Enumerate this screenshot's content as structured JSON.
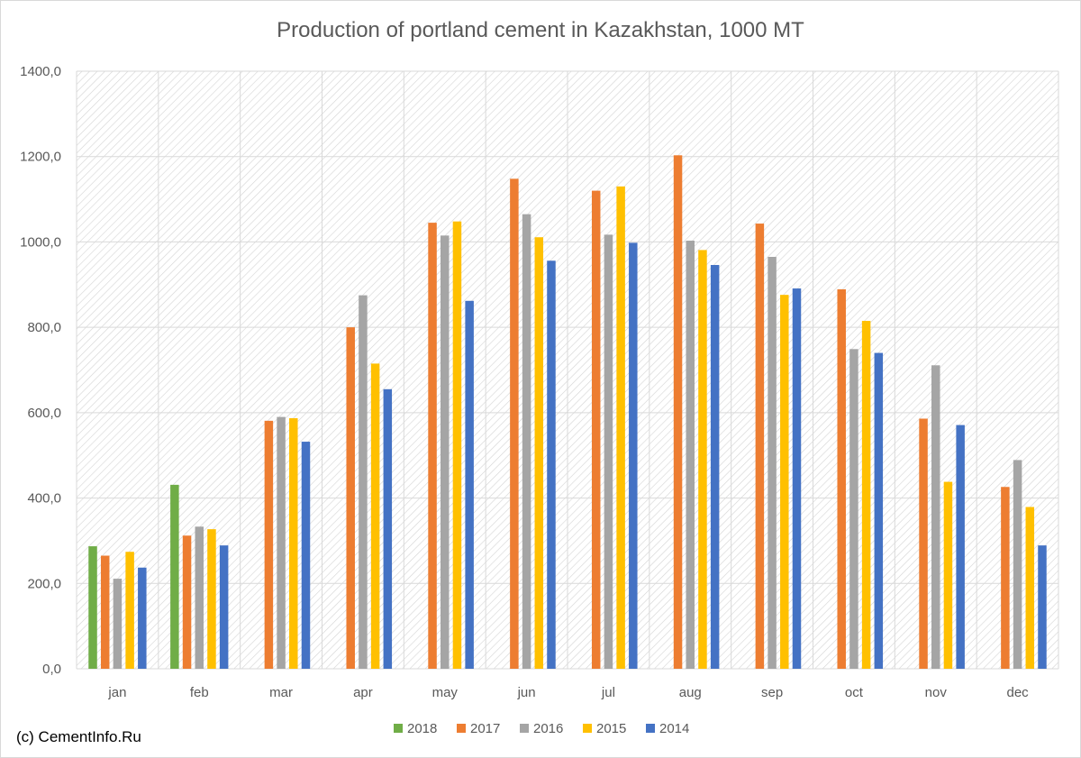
{
  "chart_data": {
    "type": "bar",
    "title": "Production of portland cement in Kazakhstan, 1000 MT",
    "categories": [
      "jan",
      "feb",
      "mar",
      "apr",
      "may",
      "jun",
      "jul",
      "aug",
      "sep",
      "oct",
      "nov",
      "dec"
    ],
    "ylim": [
      0,
      1400
    ],
    "yticks": [
      0,
      200,
      400,
      600,
      800,
      1000,
      1200,
      1400
    ],
    "ytick_labels": [
      "0,0",
      "200,0",
      "400,0",
      "600,0",
      "800,0",
      "1000,0",
      "1200,0",
      "1400,0"
    ],
    "grid": true,
    "legend_position": "bottom",
    "series": [
      {
        "name": "2018",
        "color": "#70ad47",
        "values": [
          287,
          431,
          null,
          null,
          null,
          null,
          null,
          null,
          null,
          null,
          null,
          null
        ]
      },
      {
        "name": "2017",
        "color": "#ed7d31",
        "values": [
          265,
          312,
          581,
          800,
          1045,
          1148,
          1120,
          1203,
          1043,
          889,
          586,
          426
        ]
      },
      {
        "name": "2016",
        "color": "#a5a5a5",
        "values": [
          211,
          333,
          590,
          875,
          1015,
          1065,
          1017,
          1003,
          965,
          749,
          711,
          489
        ]
      },
      {
        "name": "2015",
        "color": "#ffc000",
        "values": [
          274,
          327,
          587,
          715,
          1048,
          1011,
          1130,
          981,
          876,
          815,
          438,
          379
        ]
      },
      {
        "name": "2014",
        "color": "#4472c4",
        "values": [
          237,
          289,
          532,
          655,
          862,
          956,
          998,
          946,
          891,
          740,
          571,
          289
        ]
      }
    ]
  },
  "credit": "(c) CementInfo.Ru"
}
